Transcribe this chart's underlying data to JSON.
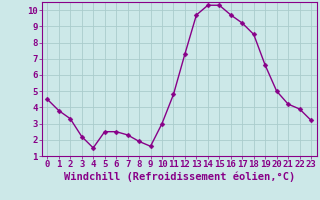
{
  "x": [
    0,
    1,
    2,
    3,
    4,
    5,
    6,
    7,
    8,
    9,
    10,
    11,
    12,
    13,
    14,
    15,
    16,
    17,
    18,
    19,
    20,
    21,
    22,
    23
  ],
  "y": [
    4.5,
    3.8,
    3.3,
    2.2,
    1.5,
    2.5,
    2.5,
    2.3,
    1.9,
    1.6,
    3.0,
    4.8,
    7.3,
    9.7,
    10.3,
    10.3,
    9.7,
    9.2,
    8.5,
    6.6,
    5.0,
    4.2,
    3.9,
    3.2
  ],
  "line_color": "#880088",
  "marker_color": "#880088",
  "background_color": "#cce8e8",
  "grid_color": "#aacccc",
  "xlabel": "Windchill (Refroidissement éolien,°C)",
  "ylim": [
    1,
    10.5
  ],
  "xlim": [
    -0.5,
    23.5
  ],
  "yticks": [
    1,
    2,
    3,
    4,
    5,
    6,
    7,
    8,
    9,
    10
  ],
  "xticks": [
    0,
    1,
    2,
    3,
    4,
    5,
    6,
    7,
    8,
    9,
    10,
    11,
    12,
    13,
    14,
    15,
    16,
    17,
    18,
    19,
    20,
    21,
    22,
    23
  ],
  "tick_label_fontsize": 6.5,
  "xlabel_fontsize": 7.5,
  "xlabel_color": "#880088",
  "tick_color": "#880088",
  "spine_color": "#880088",
  "line_width": 1.0,
  "marker_size": 2.5
}
